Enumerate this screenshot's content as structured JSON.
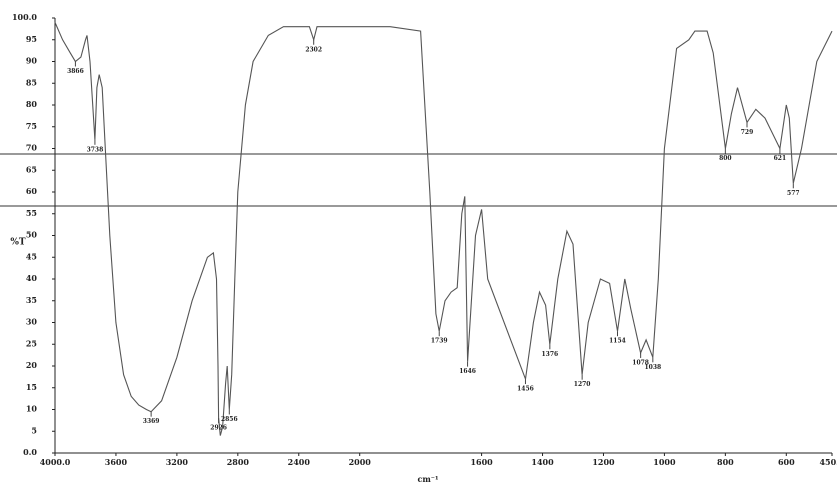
{
  "chart_data": {
    "type": "line",
    "y_label": "%T",
    "x_label": "cm⁻¹",
    "color": "#555555",
    "xlim": [
      4000,
      450
    ],
    "x_scale_change": {
      "at": 2000,
      "factor": 2
    },
    "ylim": [
      0,
      100
    ],
    "xticks": [
      {
        "value": 4000,
        "label": "4000.0"
      },
      3600,
      3200,
      2800,
      2400,
      2000,
      1600,
      1400,
      1200,
      1000,
      800,
      600,
      {
        "value": 450,
        "label": "450.0"
      }
    ],
    "yticks": [
      {
        "value": 0,
        "label": "0.0"
      },
      5,
      10,
      15,
      20,
      25,
      30,
      35,
      40,
      45,
      50,
      55,
      60,
      65,
      70,
      75,
      80,
      85,
      90,
      95,
      {
        "value": 100,
        "label": "100.0"
      }
    ],
    "x": [
      4000,
      3950,
      3900,
      3866,
      3830,
      3800,
      3790,
      3770,
      3738,
      3725,
      3710,
      3690,
      3670,
      3640,
      3600,
      3550,
      3500,
      3450,
      3400,
      3369,
      3300,
      3200,
      3100,
      3000,
      2960,
      2940,
      2930,
      2926,
      2915,
      2900,
      2880,
      2870,
      2856,
      2840,
      2820,
      2800,
      2750,
      2700,
      2600,
      2500,
      2400,
      2330,
      2302,
      2280,
      2200,
      2100,
      2000,
      1900,
      1800,
      1770,
      1750,
      1739,
      1720,
      1700,
      1680,
      1665,
      1655,
      1646,
      1620,
      1600,
      1580,
      1456,
      1430,
      1410,
      1390,
      1376,
      1350,
      1320,
      1300,
      1270,
      1250,
      1210,
      1180,
      1154,
      1130,
      1110,
      1078,
      1060,
      1038,
      1020,
      1000,
      960,
      920,
      900,
      860,
      840,
      800,
      780,
      760,
      729,
      700,
      670,
      621,
      600,
      590,
      577,
      550,
      500,
      450
    ],
    "values": [
      99,
      95,
      92,
      90,
      91,
      95,
      96,
      90,
      72,
      84,
      87,
      84,
      70,
      50,
      30,
      18,
      13,
      11,
      10,
      9.5,
      12,
      22,
      35,
      45,
      46,
      40,
      20,
      8,
      4,
      6,
      16,
      20,
      10,
      18,
      40,
      60,
      80,
      90,
      96,
      98,
      98,
      98,
      95,
      98,
      98,
      98,
      98,
      98,
      97,
      60,
      32,
      28,
      35,
      37,
      38,
      55,
      59,
      21,
      50,
      56,
      40,
      17,
      30,
      37,
      34,
      25,
      40,
      51,
      48,
      18,
      30,
      40,
      39,
      28,
      40,
      33,
      23,
      26,
      22,
      40,
      70,
      93,
      95,
      97,
      97,
      92,
      70,
      78,
      84,
      76,
      79,
      77,
      70,
      80,
      77,
      62,
      70,
      90,
      97
    ],
    "annotations": [
      {
        "value": 3866,
        "label": "3866"
      },
      {
        "value": 3738,
        "label": "3738"
      },
      {
        "value": 3369,
        "label": "3369"
      },
      {
        "value": 2926,
        "label": "2926"
      },
      {
        "value": 2856,
        "label": "2856"
      },
      {
        "value": 2302,
        "label": "2302"
      },
      {
        "value": 1739,
        "label": "1739"
      },
      {
        "value": 1646,
        "label": "1646"
      },
      {
        "value": 1456,
        "label": "1456"
      },
      {
        "value": 1376,
        "label": "1376"
      },
      {
        "value": 1270,
        "label": "1270"
      },
      {
        "value": 1154,
        "label": "1154"
      },
      {
        "value": 1078,
        "label": "1078"
      },
      {
        "value": 1038,
        "label": "1038"
      },
      {
        "value": 800,
        "label": "800"
      },
      {
        "value": 729,
        "label": "729"
      },
      {
        "value": 621,
        "label": "621"
      },
      {
        "value": 577,
        "label": "577"
      }
    ]
  }
}
